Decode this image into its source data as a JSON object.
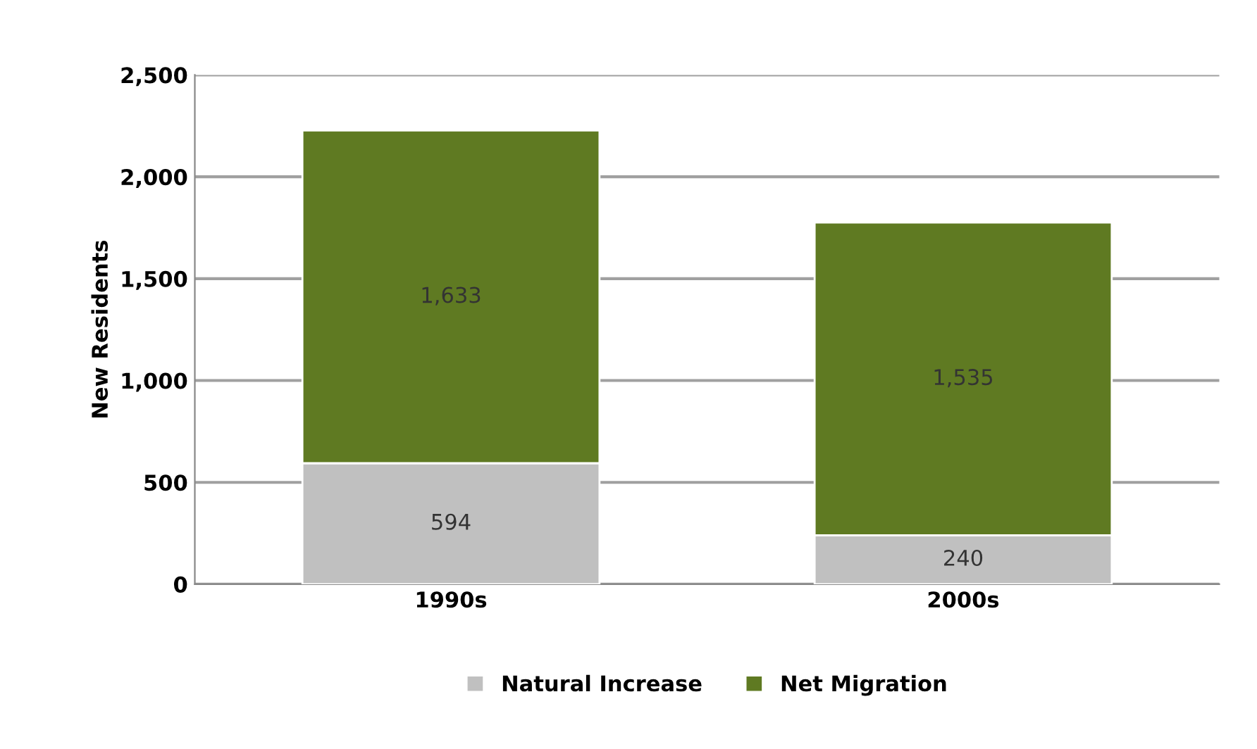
{
  "chart_data": {
    "type": "bar",
    "stacked": true,
    "ylabel": "New Residents",
    "categories": [
      "1990s",
      "2000s"
    ],
    "series": [
      {
        "name": "Natural Increase",
        "color": "#c0c0c0",
        "values": [
          594,
          240
        ],
        "value_labels": [
          "594",
          "240"
        ]
      },
      {
        "name": "Net Migration",
        "color": "#5f7a22",
        "values": [
          1633,
          1535
        ],
        "value_labels": [
          "1,633",
          "1,535"
        ]
      }
    ],
    "ylim": [
      0,
      2500
    ],
    "yticks": [
      0,
      {
        "value": 500,
        "label": "500"
      },
      {
        "value": 1000,
        "label": "1,000"
      },
      {
        "value": 1500,
        "label": "1,500"
      },
      {
        "value": 2000,
        "label": "2,000"
      },
      {
        "value": 2500,
        "label": "2,500"
      }
    ],
    "grid": "y",
    "legend": "bottom"
  }
}
